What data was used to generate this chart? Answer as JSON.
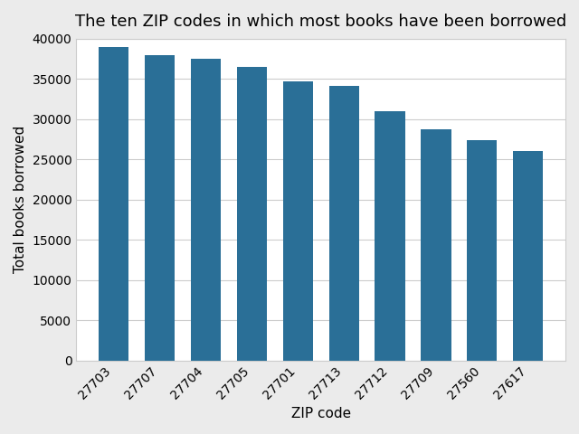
{
  "title": "The ten ZIP codes in which most books have been borrowed",
  "xlabel": "ZIP code",
  "ylabel": "Total books borrowed",
  "categories": [
    "27703",
    "27707",
    "27704",
    "27705",
    "27701",
    "27713",
    "27712",
    "27709",
    "27560",
    "27617"
  ],
  "values": [
    39000,
    38000,
    37500,
    36500,
    34700,
    34100,
    31000,
    28700,
    27400,
    26000
  ],
  "bar_color": "#2a6f97",
  "figure_facecolor": "#ebebeb",
  "axes_facecolor": "#ffffff",
  "grid_color": "#cccccc",
  "spine_color": "#cccccc",
  "ylim": [
    0,
    40000
  ],
  "yticks": [
    0,
    5000,
    10000,
    15000,
    20000,
    25000,
    30000,
    35000,
    40000
  ],
  "title_fontsize": 13,
  "label_fontsize": 11,
  "tick_fontsize": 10,
  "bar_width": 0.65
}
